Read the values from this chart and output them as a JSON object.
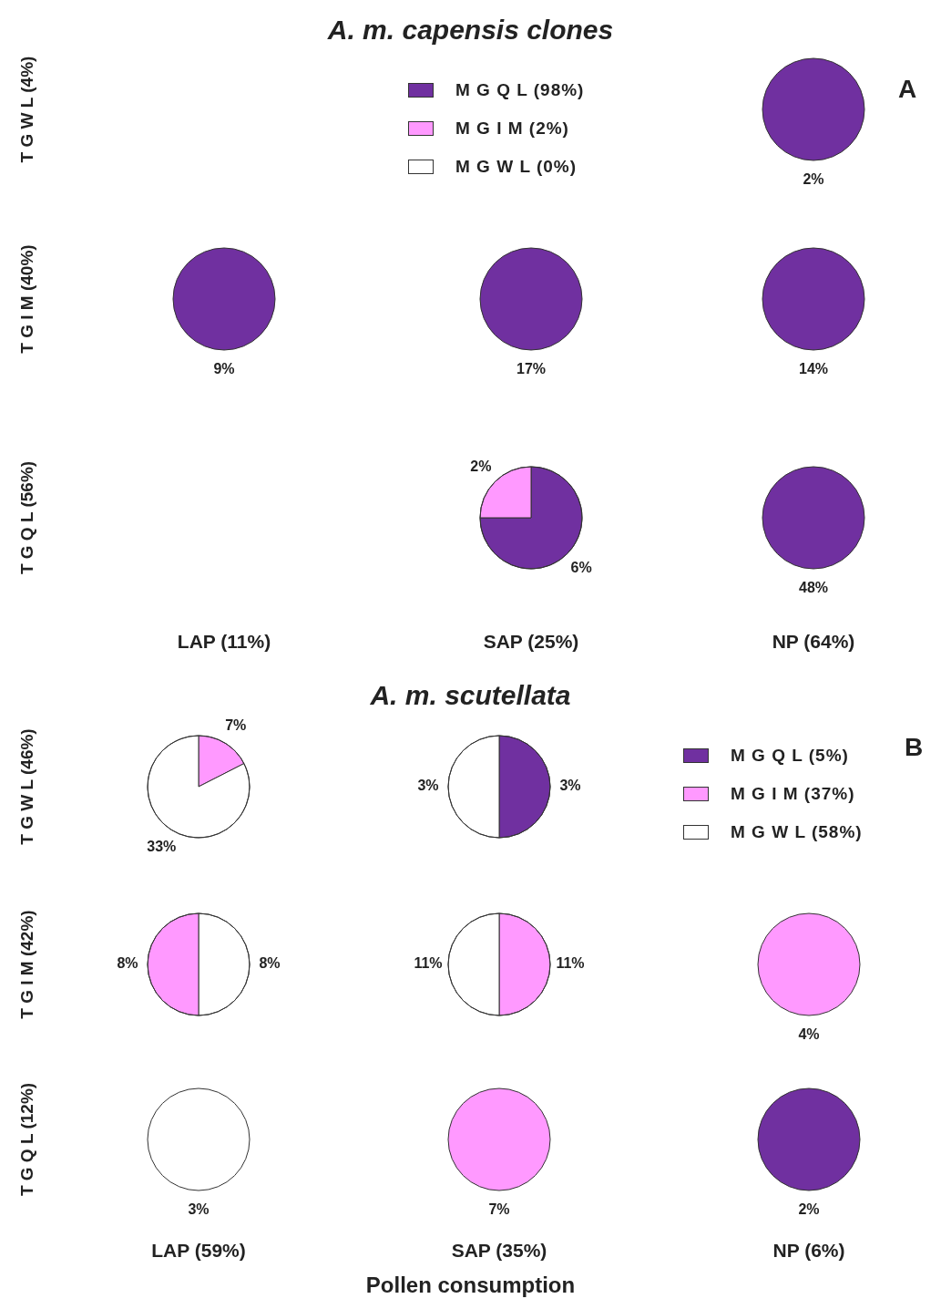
{
  "chart_data": [
    {
      "type": "other",
      "title": "A. m. capensis clones",
      "categories": [
        "M G Q L (98%)",
        "M G I M (2%)",
        "M G W L (0%)"
      ],
      "colors": [
        "#7030a0",
        "#ff99ff",
        "#ffffff"
      ],
      "y_categories": [
        "T G W L (4%)",
        "T G I M (40%)",
        "T G Q L (56%)"
      ],
      "annotations": [
        "LAP (11%)",
        "SAP (25%)",
        "NP (64%)",
        "A"
      ]
    },
    {
      "type": "pie",
      "categories": [
        null
      ],
      "values": [
        2
      ],
      "colors": [
        "#7030a0"
      ],
      "value_labels": [
        "2%"
      ]
    },
    {
      "type": "pie",
      "categories": [
        null
      ],
      "values": [
        9
      ],
      "colors": [
        "#7030a0"
      ],
      "value_labels": [
        "9%"
      ]
    },
    {
      "type": "pie",
      "categories": [
        null
      ],
      "values": [
        17
      ],
      "colors": [
        "#7030a0"
      ],
      "value_labels": [
        "17%"
      ]
    },
    {
      "type": "pie",
      "categories": [
        null
      ],
      "values": [
        14
      ],
      "colors": [
        "#7030a0"
      ],
      "value_labels": [
        "14%"
      ]
    },
    {
      "type": "pie",
      "categories": [
        null,
        null
      ],
      "values": [
        6,
        2
      ],
      "colors": [
        "#7030a0",
        "#ff99ff"
      ],
      "value_labels": [
        "6%",
        "2%"
      ]
    },
    {
      "type": "pie",
      "categories": [
        null
      ],
      "values": [
        48
      ],
      "colors": [
        "#7030a0"
      ],
      "value_labels": [
        "48%"
      ]
    },
    {
      "type": "other",
      "title": "A. m. scutellata",
      "categories": [
        "M G Q L (5%)",
        "M G I M (37%)",
        "M G W L (58%)"
      ],
      "colors": [
        "#7030a0",
        "#ff99ff",
        "#ffffff"
      ],
      "y_categories": [
        "T G W L (46%)",
        "T G I M (42%)",
        "T G Q L (12%)"
      ],
      "xlabel": "Pollen consumption",
      "annotations": [
        "LAP (59%)",
        "SAP (35%)",
        "NP (6%)",
        "B"
      ]
    },
    {
      "type": "pie",
      "categories": [
        null,
        null
      ],
      "values": [
        7,
        33
      ],
      "colors": [
        "#ff99ff",
        "#ffffff"
      ],
      "value_labels": [
        "7%",
        "33%"
      ]
    },
    {
      "type": "pie",
      "categories": [
        null,
        null
      ],
      "values": [
        3,
        3
      ],
      "colors": [
        "#7030a0",
        "#ffffff"
      ],
      "value_labels": [
        "3%",
        "3%"
      ]
    },
    {
      "type": "pie",
      "categories": [
        null,
        null
      ],
      "values": [
        8,
        8
      ],
      "colors": [
        "#ffffff",
        "#ff99ff"
      ],
      "value_labels": [
        "8%",
        "8%"
      ]
    },
    {
      "type": "pie",
      "categories": [
        null,
        null
      ],
      "values": [
        11,
        11
      ],
      "colors": [
        "#ff99ff",
        "#ffffff"
      ],
      "value_labels": [
        "11%",
        "11%"
      ]
    },
    {
      "type": "pie",
      "categories": [
        null
      ],
      "values": [
        4
      ],
      "colors": [
        "#ff99ff"
      ],
      "value_labels": [
        "4%"
      ]
    },
    {
      "type": "pie",
      "categories": [
        null
      ],
      "values": [
        3
      ],
      "colors": [
        "#ffffff"
      ],
      "value_labels": [
        "3%"
      ]
    },
    {
      "type": "pie",
      "categories": [
        null
      ],
      "values": [
        7
      ],
      "colors": [
        "#ff99ff"
      ],
      "value_labels": [
        "7%"
      ]
    },
    {
      "type": "pie",
      "categories": [
        null
      ],
      "values": [
        2
      ],
      "colors": [
        "#7030a0"
      ],
      "value_labels": [
        "2%"
      ]
    }
  ]
}
